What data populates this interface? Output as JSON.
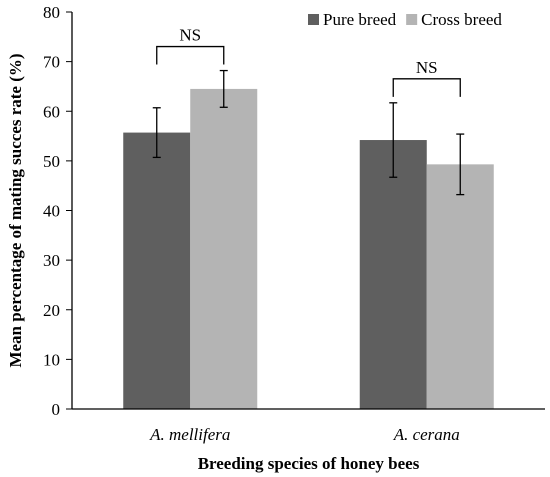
{
  "chart_data": {
    "type": "bar",
    "categories": [
      "A. mellifera",
      "A. cerana"
    ],
    "series": [
      {
        "name": "Pure breed",
        "color": "#5f5f5f",
        "values": [
          55.7,
          54.2
        ],
        "errors": [
          5.0,
          7.5
        ]
      },
      {
        "name": "Cross breed",
        "color": "#b4b4b4",
        "values": [
          64.5,
          49.3
        ],
        "errors": [
          3.7,
          6.1
        ]
      }
    ],
    "xlabel": "Breeding species of honey bees",
    "ylabel": "Mean percentage of mating succes rate (%)",
    "ylim": [
      0,
      80
    ],
    "yticks": [
      0,
      10,
      20,
      30,
      40,
      50,
      60,
      70,
      80
    ],
    "grid": false,
    "legend_position": "top-right",
    "annotations": [
      {
        "text": "NS",
        "category": 0
      },
      {
        "text": "NS",
        "category": 1
      }
    ]
  }
}
